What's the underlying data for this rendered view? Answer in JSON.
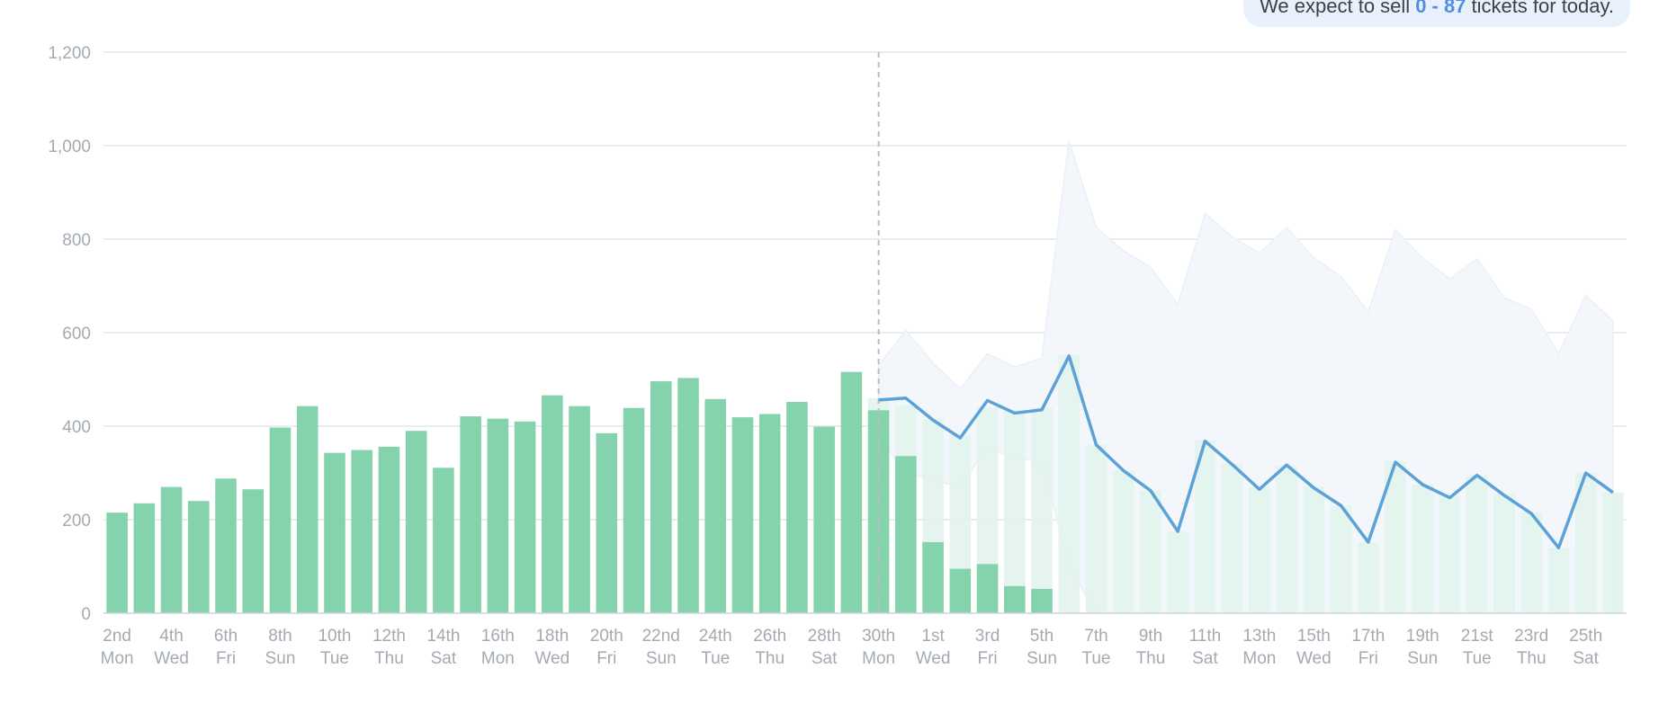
{
  "banner": {
    "prefix": "We expect to sell",
    "range": "0 - 87",
    "suffix": "tickets for today."
  },
  "chart_data": {
    "type": "bar",
    "ylim": [
      0,
      1200
    ],
    "yticks": [
      "0",
      "200",
      "400",
      "600",
      "800",
      "1,000",
      "1,200"
    ],
    "grid": true,
    "today_index": 28,
    "colors": {
      "actual_bar": "#84d3ad",
      "forecast_bar": "#e2f3ed",
      "forecast_line": "#5ca2d6",
      "band": "#f3f7fb",
      "grid": "#e4e7ea",
      "axis_text": "#a3aab2"
    },
    "x_labels": [
      {
        "i": 0,
        "day": "2nd",
        "dow": "Mon"
      },
      {
        "i": 2,
        "day": "4th",
        "dow": "Wed"
      },
      {
        "i": 4,
        "day": "6th",
        "dow": "Fri"
      },
      {
        "i": 6,
        "day": "8th",
        "dow": "Sun"
      },
      {
        "i": 8,
        "day": "10th",
        "dow": "Tue"
      },
      {
        "i": 10,
        "day": "12th",
        "dow": "Thu"
      },
      {
        "i": 12,
        "day": "14th",
        "dow": "Sat"
      },
      {
        "i": 14,
        "day": "16th",
        "dow": "Mon"
      },
      {
        "i": 16,
        "day": "18th",
        "dow": "Wed"
      },
      {
        "i": 18,
        "day": "20th",
        "dow": "Fri"
      },
      {
        "i": 20,
        "day": "22nd",
        "dow": "Sun"
      },
      {
        "i": 22,
        "day": "24th",
        "dow": "Tue"
      },
      {
        "i": 24,
        "day": "26th",
        "dow": "Thu"
      },
      {
        "i": 26,
        "day": "28th",
        "dow": "Sat"
      },
      {
        "i": 28,
        "day": "30th",
        "dow": "Mon"
      },
      {
        "i": 30,
        "day": "1st",
        "dow": "Wed"
      },
      {
        "i": 32,
        "day": "3rd",
        "dow": "Fri"
      },
      {
        "i": 34,
        "day": "5th",
        "dow": "Sun"
      },
      {
        "i": 36,
        "day": "7th",
        "dow": "Tue"
      },
      {
        "i": 38,
        "day": "9th",
        "dow": "Thu"
      },
      {
        "i": 40,
        "day": "11th",
        "dow": "Sat"
      },
      {
        "i": 42,
        "day": "13th",
        "dow": "Mon"
      },
      {
        "i": 44,
        "day": "15th",
        "dow": "Wed"
      },
      {
        "i": 46,
        "day": "17th",
        "dow": "Fri"
      },
      {
        "i": 48,
        "day": "19th",
        "dow": "Sun"
      },
      {
        "i": 50,
        "day": "21st",
        "dow": "Tue"
      },
      {
        "i": 52,
        "day": "23rd",
        "dow": "Thu"
      },
      {
        "i": 54,
        "day": "25th",
        "dow": "Sat"
      }
    ],
    "actual": [
      215,
      235,
      270,
      240,
      288,
      265,
      397,
      443,
      343,
      349,
      356,
      390,
      311,
      421,
      416,
      410,
      466,
      443,
      385,
      439,
      496,
      503,
      458,
      419,
      426,
      452,
      399,
      516,
      434,
      336,
      152,
      95,
      105,
      58,
      52
    ],
    "forecast_bars": [
      null,
      null,
      null,
      null,
      null,
      null,
      null,
      null,
      null,
      null,
      null,
      null,
      null,
      null,
      null,
      null,
      null,
      null,
      null,
      null,
      null,
      null,
      null,
      null,
      null,
      null,
      null,
      null,
      460,
      445,
      415,
      380,
      440,
      435,
      440,
      553,
      360,
      305,
      262,
      175,
      370,
      320,
      270,
      315,
      270,
      230,
      152,
      325,
      275,
      250,
      295,
      255,
      215,
      140,
      300,
      258
    ],
    "forecast_line": [
      null,
      null,
      null,
      null,
      null,
      null,
      null,
      null,
      null,
      null,
      null,
      null,
      null,
      null,
      null,
      null,
      null,
      null,
      null,
      null,
      null,
      null,
      null,
      null,
      null,
      null,
      null,
      null,
      456,
      460,
      413,
      375,
      455,
      428,
      435,
      550,
      360,
      305,
      262,
      175,
      368,
      318,
      265,
      317,
      268,
      230,
      152,
      323,
      275,
      247,
      295,
      252,
      213,
      140,
      300,
      258
    ],
    "band_upper": [
      null,
      null,
      null,
      null,
      null,
      null,
      null,
      null,
      null,
      null,
      null,
      null,
      null,
      null,
      null,
      null,
      null,
      null,
      null,
      null,
      null,
      null,
      null,
      null,
      null,
      null,
      null,
      null,
      530,
      605,
      535,
      480,
      555,
      527,
      545,
      1010,
      825,
      775,
      740,
      660,
      855,
      805,
      770,
      825,
      760,
      720,
      645,
      820,
      760,
      715,
      758,
      675,
      650,
      555,
      680,
      625
    ],
    "band_lower": [
      null,
      null,
      null,
      null,
      null,
      null,
      null,
      null,
      null,
      null,
      null,
      null,
      null,
      null,
      null,
      null,
      null,
      null,
      null,
      null,
      null,
      null,
      null,
      null,
      null,
      null,
      null,
      null,
      375,
      300,
      285,
      270,
      355,
      330,
      325,
      100,
      0,
      0,
      0,
      0,
      0,
      0,
      0,
      0,
      0,
      0,
      0,
      0,
      0,
      0,
      0,
      0,
      0,
      0,
      0,
      0
    ]
  }
}
